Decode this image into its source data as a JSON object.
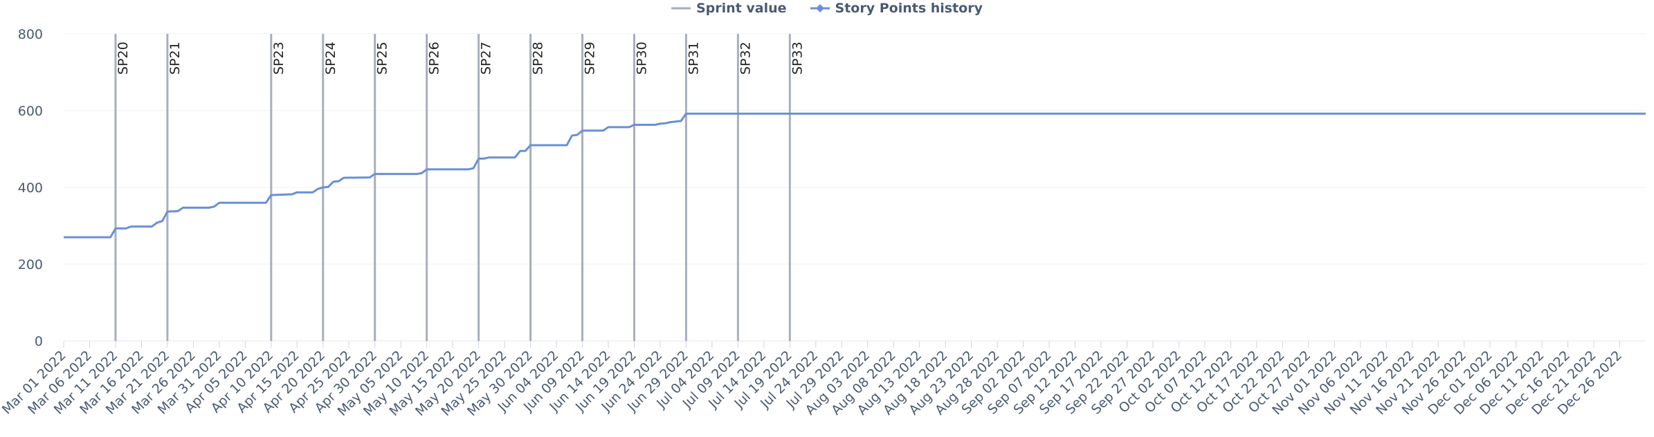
{
  "legend": {
    "items": [
      {
        "label": "Sprint value",
        "color": "#a9aebd",
        "symbol": "line"
      },
      {
        "label": "Story Points history",
        "color": "#6a8fd6",
        "symbol": "line-diamond"
      }
    ]
  },
  "chart_data": {
    "type": "line",
    "title": "",
    "xlabel": "",
    "ylabel": "",
    "ylim": [
      0,
      800
    ],
    "y_ticks": [
      0,
      200,
      400,
      600,
      800
    ],
    "grid": true,
    "legend_position": "top-center",
    "x_range": [
      "2022-03-01",
      "2022-12-31"
    ],
    "x_ticks": [
      "Mar 01 2022",
      "Mar 06 2022",
      "Mar 11 2022",
      "Mar 16 2022",
      "Mar 21 2022",
      "Mar 26 2022",
      "Mar 31 2022",
      "Apr 05 2022",
      "Apr 10 2022",
      "Apr 15 2022",
      "Apr 20 2022",
      "Apr 25 2022",
      "Apr 30 2022",
      "May 05 2022",
      "May 10 2022",
      "May 15 2022",
      "May 20 2022",
      "May 25 2022",
      "May 30 2022",
      "Jun 04 2022",
      "Jun 09 2022",
      "Jun 14 2022",
      "Jun 19 2022",
      "Jun 24 2022",
      "Jun 29 2022",
      "Jul 04 2022",
      "Jul 09 2022",
      "Jul 14 2022",
      "Jul 19 2022",
      "Jul 24 2022",
      "Jul 29 2022",
      "Aug 03 2022",
      "Aug 08 2022",
      "Aug 13 2022",
      "Aug 18 2022",
      "Aug 23 2022",
      "Aug 28 2022",
      "Sep 02 2022",
      "Sep 07 2022",
      "Sep 12 2022",
      "Sep 17 2022",
      "Sep 22 2022",
      "Sep 27 2022",
      "Oct 02 2022",
      "Oct 07 2022",
      "Oct 12 2022",
      "Oct 17 2022",
      "Oct 22 2022",
      "Oct 27 2022",
      "Nov 01 2022",
      "Nov 06 2022",
      "Nov 11 2022",
      "Nov 16 2022",
      "Nov 21 2022",
      "Nov 26 2022",
      "Dec 01 2022",
      "Dec 06 2022",
      "Dec 11 2022",
      "Dec 16 2022",
      "Dec 21 2022",
      "Dec 26 2022"
    ],
    "sprints": [
      {
        "name": "SP20",
        "date": "2022-03-11"
      },
      {
        "name": "SP21",
        "date": "2022-03-21"
      },
      {
        "name": "SP23",
        "date": "2022-04-10"
      },
      {
        "name": "SP24",
        "date": "2022-04-20"
      },
      {
        "name": "SP25",
        "date": "2022-04-30"
      },
      {
        "name": "SP26",
        "date": "2022-05-10"
      },
      {
        "name": "SP27",
        "date": "2022-05-20"
      },
      {
        "name": "SP28",
        "date": "2022-05-30"
      },
      {
        "name": "SP29",
        "date": "2022-06-09"
      },
      {
        "name": "SP30",
        "date": "2022-06-19"
      },
      {
        "name": "SP31",
        "date": "2022-06-29"
      },
      {
        "name": "SP32",
        "date": "2022-07-09"
      },
      {
        "name": "SP33",
        "date": "2022-07-19"
      }
    ],
    "series": [
      {
        "name": "Story Points history",
        "points": [
          [
            "2022-03-01",
            270
          ],
          [
            "2022-03-10",
            270
          ],
          [
            "2022-03-11",
            293
          ],
          [
            "2022-03-13",
            293
          ],
          [
            "2022-03-14",
            298
          ],
          [
            "2022-03-18",
            298
          ],
          [
            "2022-03-19",
            308
          ],
          [
            "2022-03-20",
            312
          ],
          [
            "2022-03-21",
            337
          ],
          [
            "2022-03-23",
            338
          ],
          [
            "2022-03-24",
            347
          ],
          [
            "2022-03-29",
            347
          ],
          [
            "2022-03-30",
            350
          ],
          [
            "2022-03-31",
            360
          ],
          [
            "2022-04-09",
            360
          ],
          [
            "2022-04-10",
            380
          ],
          [
            "2022-04-14",
            382
          ],
          [
            "2022-04-15",
            387
          ],
          [
            "2022-04-18",
            387
          ],
          [
            "2022-04-19",
            396
          ],
          [
            "2022-04-20",
            400
          ],
          [
            "2022-04-21",
            401
          ],
          [
            "2022-04-22",
            415
          ],
          [
            "2022-04-23",
            416
          ],
          [
            "2022-04-24",
            425
          ],
          [
            "2022-04-29",
            426
          ],
          [
            "2022-04-30",
            435
          ],
          [
            "2022-05-08",
            435
          ],
          [
            "2022-05-09",
            437
          ],
          [
            "2022-05-10",
            447
          ],
          [
            "2022-05-18",
            447
          ],
          [
            "2022-05-19",
            450
          ],
          [
            "2022-05-20",
            475
          ],
          [
            "2022-05-21",
            475
          ],
          [
            "2022-05-22",
            478
          ],
          [
            "2022-05-27",
            478
          ],
          [
            "2022-05-28",
            495
          ],
          [
            "2022-05-29",
            495
          ],
          [
            "2022-05-30",
            510
          ],
          [
            "2022-06-06",
            510
          ],
          [
            "2022-06-07",
            535
          ],
          [
            "2022-06-08",
            537
          ],
          [
            "2022-06-09",
            548
          ],
          [
            "2022-06-13",
            548
          ],
          [
            "2022-06-14",
            557
          ],
          [
            "2022-06-18",
            557
          ],
          [
            "2022-06-19",
            563
          ],
          [
            "2022-06-23",
            563
          ],
          [
            "2022-06-24",
            566
          ],
          [
            "2022-06-25",
            567
          ],
          [
            "2022-06-26",
            570
          ],
          [
            "2022-06-28",
            573
          ],
          [
            "2022-06-29",
            592
          ],
          [
            "2022-12-31",
            592
          ]
        ]
      }
    ]
  }
}
